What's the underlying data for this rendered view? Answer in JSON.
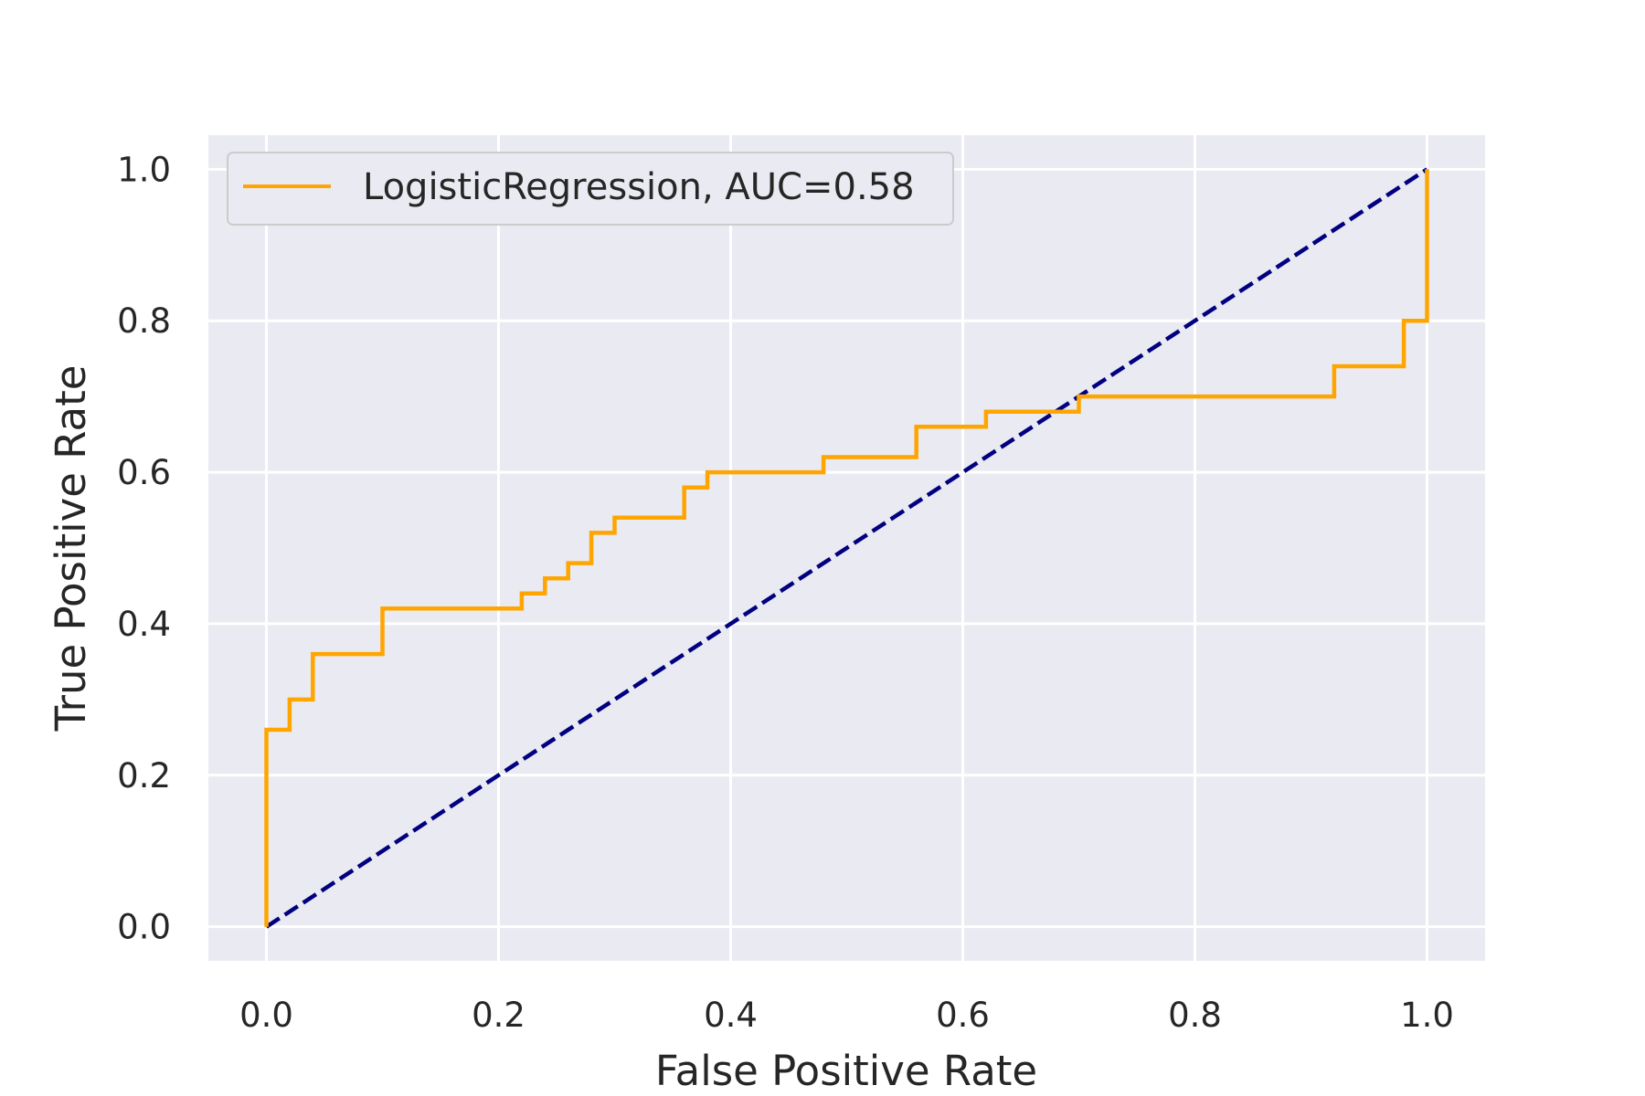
{
  "chart_data": {
    "type": "line",
    "title": "",
    "xlabel": "False Positive Rate",
    "ylabel": "True Positive Rate",
    "xlim": [
      -0.05,
      1.05
    ],
    "ylim": [
      -0.045,
      1.045
    ],
    "x_ticks": [
      0.0,
      0.2,
      0.4,
      0.6,
      0.8,
      1.0
    ],
    "x_tick_labels": [
      "0.0",
      "0.2",
      "0.4",
      "0.6",
      "0.8",
      "1.0"
    ],
    "y_ticks": [
      0.0,
      0.2,
      0.4,
      0.6,
      0.8,
      1.0
    ],
    "y_tick_labels": [
      "0.0",
      "0.2",
      "0.4",
      "0.6",
      "0.8",
      "1.0"
    ],
    "grid": true,
    "legend_position": "upper-left",
    "background_color": "#eaeaf2",
    "grid_color": "#ffffff",
    "series": [
      {
        "name": "LogisticRegression, AUC=0.58",
        "color": "#ffa500",
        "style": "step",
        "x": [
          0.0,
          0.0,
          0.02,
          0.02,
          0.04,
          0.04,
          0.1,
          0.1,
          0.22,
          0.22,
          0.24,
          0.24,
          0.26,
          0.26,
          0.28,
          0.28,
          0.3,
          0.3,
          0.36,
          0.36,
          0.38,
          0.38,
          0.48,
          0.48,
          0.56,
          0.56,
          0.62,
          0.62,
          0.7,
          0.7,
          0.92,
          0.92,
          0.98,
          0.98,
          1.0,
          1.0
        ],
        "y": [
          0.0,
          0.26,
          0.26,
          0.3,
          0.3,
          0.36,
          0.36,
          0.42,
          0.42,
          0.44,
          0.44,
          0.46,
          0.46,
          0.48,
          0.48,
          0.52,
          0.52,
          0.54,
          0.54,
          0.58,
          0.58,
          0.6,
          0.6,
          0.62,
          0.62,
          0.66,
          0.66,
          0.68,
          0.68,
          0.7,
          0.7,
          0.74,
          0.74,
          0.8,
          0.8,
          1.0
        ]
      },
      {
        "color": "#000080",
        "style": "dashed",
        "x": [
          0.0,
          1.0
        ],
        "y": [
          0.0,
          1.0
        ]
      }
    ]
  }
}
